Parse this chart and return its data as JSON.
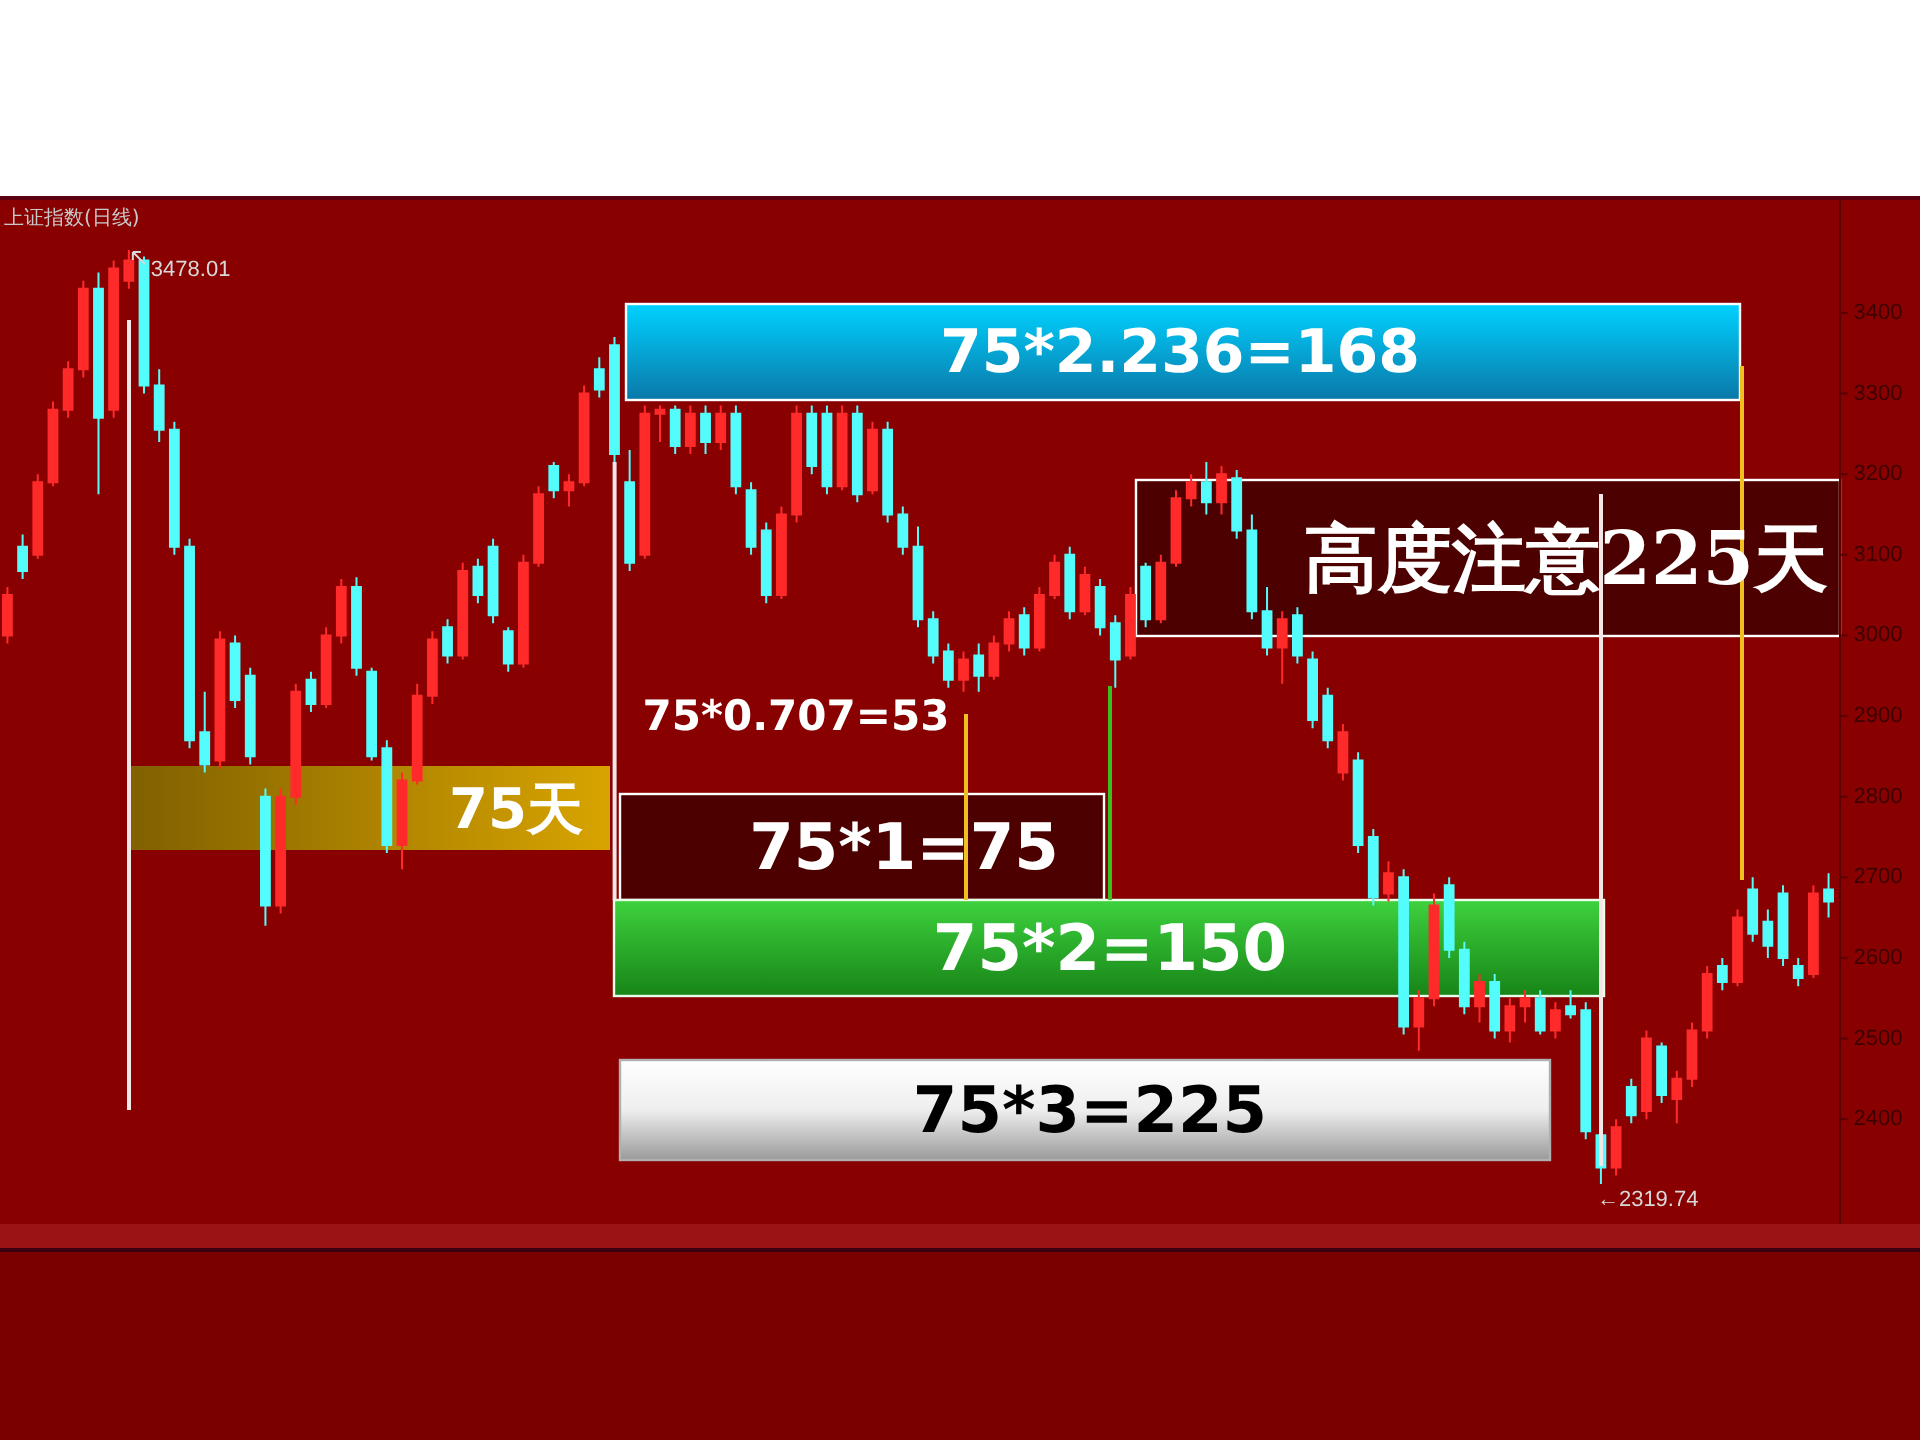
{
  "chart_data": {
    "type": "candlestick",
    "title": "上证指数(日线)",
    "categories": [
      null,
      null,
      null,
      null,
      null,
      null,
      null,
      null,
      null,
      null,
      null,
      null,
      null,
      null,
      null,
      null,
      null,
      null,
      null,
      null,
      null,
      null,
      null,
      null,
      null,
      null,
      null,
      null,
      null,
      null,
      null,
      null,
      null,
      null,
      null,
      null,
      null,
      null,
      null,
      null,
      null,
      null,
      null,
      null,
      null,
      null,
      null,
      null,
      null,
      null,
      null,
      null,
      null,
      null,
      null,
      null,
      null,
      null,
      null,
      null,
      null,
      null,
      null,
      null,
      null,
      null,
      null,
      null,
      null,
      null,
      null,
      null,
      null,
      null,
      null,
      null,
      null,
      null,
      null,
      null,
      null,
      null,
      null,
      null,
      null,
      null,
      null,
      null,
      null,
      null,
      null,
      null,
      null,
      null,
      null,
      null,
      null,
      null,
      null,
      null,
      null,
      null,
      null,
      null,
      null,
      null,
      null,
      null,
      null,
      null,
      null,
      null,
      null,
      null,
      null,
      null,
      null,
      null,
      null,
      null,
      null
    ],
    "ohlc": [
      [
        3000,
        3060,
        2990,
        3050
      ],
      [
        3110,
        3125,
        3070,
        3080
      ],
      [
        3100,
        3200,
        3095,
        3190
      ],
      [
        3190,
        3290,
        3185,
        3280
      ],
      [
        3280,
        3340,
        3270,
        3330
      ],
      [
        3330,
        3440,
        3320,
        3430
      ],
      [
        3430,
        3450,
        3175,
        3270
      ],
      [
        3280,
        3465,
        3270,
        3455
      ],
      [
        3440,
        3478.01,
        3430,
        3465
      ],
      [
        3465,
        3470,
        3300,
        3310
      ],
      [
        3310,
        3330,
        3240,
        3255
      ],
      [
        3255,
        3265,
        3100,
        3110
      ],
      [
        3110,
        3120,
        2860,
        2870
      ],
      [
        2880,
        2930,
        2830,
        2840
      ],
      [
        2845,
        3005,
        2835,
        2995
      ],
      [
        2990,
        3000,
        2910,
        2920
      ],
      [
        2950,
        2960,
        2840,
        2850
      ],
      [
        2800,
        2810,
        2640,
        2665
      ],
      [
        2665,
        2810,
        2655,
        2800
      ],
      [
        2800,
        2940,
        2790,
        2930
      ],
      [
        2945,
        2955,
        2905,
        2915
      ],
      [
        2915,
        3010,
        2910,
        3000
      ],
      [
        3000,
        3070,
        2990,
        3060
      ],
      [
        3060,
        3072,
        2950,
        2960
      ],
      [
        2955,
        2960,
        2845,
        2850
      ],
      [
        2860,
        2870,
        2730,
        2740
      ],
      [
        2740,
        2830,
        2710,
        2820
      ],
      [
        2820,
        2940,
        2815,
        2925
      ],
      [
        2925,
        3005,
        2915,
        2995
      ],
      [
        3010,
        3020,
        2965,
        2975
      ],
      [
        2975,
        3090,
        2970,
        3080
      ],
      [
        3085,
        3095,
        3040,
        3050
      ],
      [
        3110,
        3120,
        3015,
        3025
      ],
      [
        3005,
        3010,
        2955,
        2965
      ],
      [
        2965,
        3100,
        2960,
        3090
      ],
      [
        3090,
        3185,
        3085,
        3175
      ],
      [
        3210,
        3215,
        3170,
        3180
      ],
      [
        3180,
        3200,
        3160,
        3190
      ],
      [
        3190,
        3310,
        3185,
        3300
      ],
      [
        3330,
        3345,
        3295,
        3305
      ],
      [
        3360,
        3370,
        3215,
        3225
      ],
      [
        3190,
        3230,
        3080,
        3090
      ],
      [
        3100,
        3285,
        3095,
        3275
      ],
      [
        3275,
        3285,
        3240,
        3280
      ],
      [
        3280,
        3285,
        3225,
        3235
      ],
      [
        3235,
        3285,
        3225,
        3275
      ],
      [
        3275,
        3285,
        3225,
        3240
      ],
      [
        3240,
        3285,
        3230,
        3275
      ],
      [
        3275,
        3285,
        3175,
        3185
      ],
      [
        3180,
        3190,
        3100,
        3110
      ],
      [
        3130,
        3140,
        3040,
        3050
      ],
      [
        3050,
        3160,
        3045,
        3150
      ],
      [
        3150,
        3285,
        3140,
        3275
      ],
      [
        3275,
        3285,
        3200,
        3210
      ],
      [
        3275,
        3285,
        3175,
        3185
      ],
      [
        3185,
        3285,
        3180,
        3275
      ],
      [
        3275,
        3285,
        3165,
        3175
      ],
      [
        3180,
        3265,
        3175,
        3255
      ],
      [
        3255,
        3265,
        3140,
        3150
      ],
      [
        3150,
        3160,
        3100,
        3110
      ],
      [
        3110,
        3135,
        3010,
        3020
      ],
      [
        3020,
        3030,
        2965,
        2975
      ],
      [
        2980,
        2990,
        2935,
        2945
      ],
      [
        2945,
        2980,
        2930,
        2970
      ],
      [
        2975,
        2990,
        2930,
        2950
      ],
      [
        2950,
        3000,
        2945,
        2990
      ],
      [
        2990,
        3030,
        2980,
        3020
      ],
      [
        3025,
        3035,
        2975,
        2985
      ],
      [
        2985,
        3060,
        2980,
        3050
      ],
      [
        3050,
        3100,
        3045,
        3090
      ],
      [
        3100,
        3110,
        3020,
        3030
      ],
      [
        3030,
        3085,
        3025,
        3075
      ],
      [
        3060,
        3070,
        3000,
        3010
      ],
      [
        3015,
        3025,
        2935,
        2970
      ],
      [
        2975,
        3060,
        2970,
        3050
      ],
      [
        3085,
        3090,
        3010,
        3020
      ],
      [
        3020,
        3100,
        3015,
        3090
      ],
      [
        3090,
        3180,
        3085,
        3170
      ],
      [
        3170,
        3200,
        3160,
        3190
      ],
      [
        3190,
        3215,
        3150,
        3165
      ],
      [
        3165,
        3210,
        3150,
        3200
      ],
      [
        3195,
        3205,
        3120,
        3130
      ],
      [
        3130,
        3150,
        3020,
        3030
      ],
      [
        3030,
        3060,
        2975,
        2985
      ],
      [
        2985,
        3030,
        2940,
        3020
      ],
      [
        3025,
        3035,
        2965,
        2975
      ],
      [
        2970,
        2980,
        2885,
        2895
      ],
      [
        2925,
        2935,
        2860,
        2870
      ],
      [
        2830,
        2890,
        2820,
        2880
      ],
      [
        2845,
        2855,
        2730,
        2740
      ],
      [
        2750,
        2760,
        2665,
        2675
      ],
      [
        2680,
        2720,
        2670,
        2705
      ],
      [
        2700,
        2710,
        2505,
        2515
      ],
      [
        2515,
        2560,
        2485,
        2550
      ],
      [
        2550,
        2680,
        2540,
        2665
      ],
      [
        2690,
        2700,
        2600,
        2610
      ],
      [
        2610,
        2620,
        2530,
        2540
      ],
      [
        2540,
        2580,
        2520,
        2570
      ],
      [
        2570,
        2580,
        2500,
        2510
      ],
      [
        2510,
        2550,
        2495,
        2540
      ],
      [
        2540,
        2560,
        2520,
        2550
      ],
      [
        2550,
        2560,
        2505,
        2510
      ],
      [
        2510,
        2545,
        2500,
        2535
      ],
      [
        2540,
        2560,
        2525,
        2530
      ],
      [
        2535,
        2545,
        2375,
        2385
      ],
      [
        2380,
        2390,
        2319.74,
        2340
      ],
      [
        2340,
        2400,
        2330,
        2390
      ],
      [
        2440,
        2450,
        2395,
        2405
      ],
      [
        2410,
        2510,
        2400,
        2500
      ],
      [
        2490,
        2495,
        2420,
        2430
      ],
      [
        2425,
        2460,
        2395,
        2450
      ],
      [
        2450,
        2520,
        2440,
        2510
      ],
      [
        2510,
        2590,
        2500,
        2580
      ],
      [
        2590,
        2600,
        2560,
        2570
      ],
      [
        2570,
        2660,
        2565,
        2650
      ],
      [
        2685,
        2700,
        2620,
        2630
      ],
      [
        2645,
        2660,
        2600,
        2615
      ],
      [
        2680,
        2690,
        2590,
        2600
      ],
      [
        2590,
        2600,
        2565,
        2575
      ],
      [
        2580,
        2690,
        2575,
        2680
      ],
      [
        2685,
        2705,
        2650,
        2670
      ]
    ],
    "colors": [
      "#ff2a2a",
      "#54fcfc",
      "#ff2a2a",
      "#ff2a2a",
      "#ff2a2a",
      "#ff2a2a",
      "#54fcfc",
      "#ff2a2a",
      "#ff2a2a",
      "#54fcfc",
      "#54fcfc",
      "#54fcfc",
      "#54fcfc",
      "#54fcfc",
      "#ff2a2a",
      "#54fcfc",
      "#54fcfc",
      "#54fcfc",
      "#ff2a2a",
      "#ff2a2a",
      "#54fcfc",
      "#ff2a2a",
      "#ff2a2a",
      "#54fcfc",
      "#54fcfc",
      "#54fcfc",
      "#ff2a2a",
      "#ff2a2a",
      "#ff2a2a",
      "#54fcfc",
      "#ff2a2a",
      "#54fcfc",
      "#54fcfc",
      "#54fcfc",
      "#ff2a2a",
      "#ff2a2a",
      "#54fcfc",
      "#ff2a2a",
      "#ff2a2a",
      "#54fcfc",
      "#54fcfc",
      "#54fcfc",
      "#ff2a2a",
      "#ff2a2a",
      "#54fcfc",
      "#ff2a2a",
      "#54fcfc",
      "#ff2a2a",
      "#54fcfc",
      "#54fcfc",
      "#54fcfc",
      "#ff2a2a",
      "#ff2a2a",
      "#54fcfc",
      "#54fcfc",
      "#ff2a2a",
      "#54fcfc",
      "#ff2a2a",
      "#54fcfc",
      "#54fcfc",
      "#54fcfc",
      "#54fcfc",
      "#54fcfc",
      "#ff2a2a",
      "#54fcfc",
      "#ff2a2a",
      "#ff2a2a",
      "#54fcfc",
      "#ff2a2a",
      "#ff2a2a",
      "#54fcfc",
      "#ff2a2a",
      "#54fcfc",
      "#54fcfc",
      "#ff2a2a",
      "#54fcfc",
      "#ff2a2a",
      "#ff2a2a",
      "#ff2a2a",
      "#54fcfc",
      "#ff2a2a",
      "#54fcfc",
      "#54fcfc",
      "#54fcfc",
      "#ff2a2a",
      "#54fcfc",
      "#54fcfc",
      "#54fcfc",
      "#ff2a2a",
      "#54fcfc",
      "#54fcfc",
      "#ff2a2a",
      "#54fcfc",
      "#ff2a2a",
      "#ff2a2a",
      "#54fcfc",
      "#54fcfc",
      "#ff2a2a",
      "#54fcfc",
      "#ff2a2a",
      "#ff2a2a",
      "#54fcfc",
      "#ff2a2a",
      "#54fcfc",
      "#54fcfc",
      "#54fcfc",
      "#ff2a2a",
      "#54fcfc",
      "#ff2a2a",
      "#54fcfc",
      "#ff2a2a",
      "#ff2a2a",
      "#ff2a2a",
      "#54fcfc",
      "#ff2a2a",
      "#54fcfc",
      "#54fcfc",
      "#54fcfc",
      "#54fcfc",
      "#ff2a2a",
      "#54fcfc"
    ],
    "ylim": [
      2270,
      3540
    ],
    "yticks": [
      2400,
      2500,
      2600,
      2700,
      2800,
      2900,
      3000,
      3100,
      3200,
      3300,
      3400
    ],
    "tick_labels": "y",
    "annotations": [
      "3478.01",
      "75*2.236=168",
      "高度注意225天",
      "75*0.707=53",
      "75天",
      "75*1=75",
      "75*2=150",
      "75*3=225",
      "←2319.74"
    ]
  }
}
